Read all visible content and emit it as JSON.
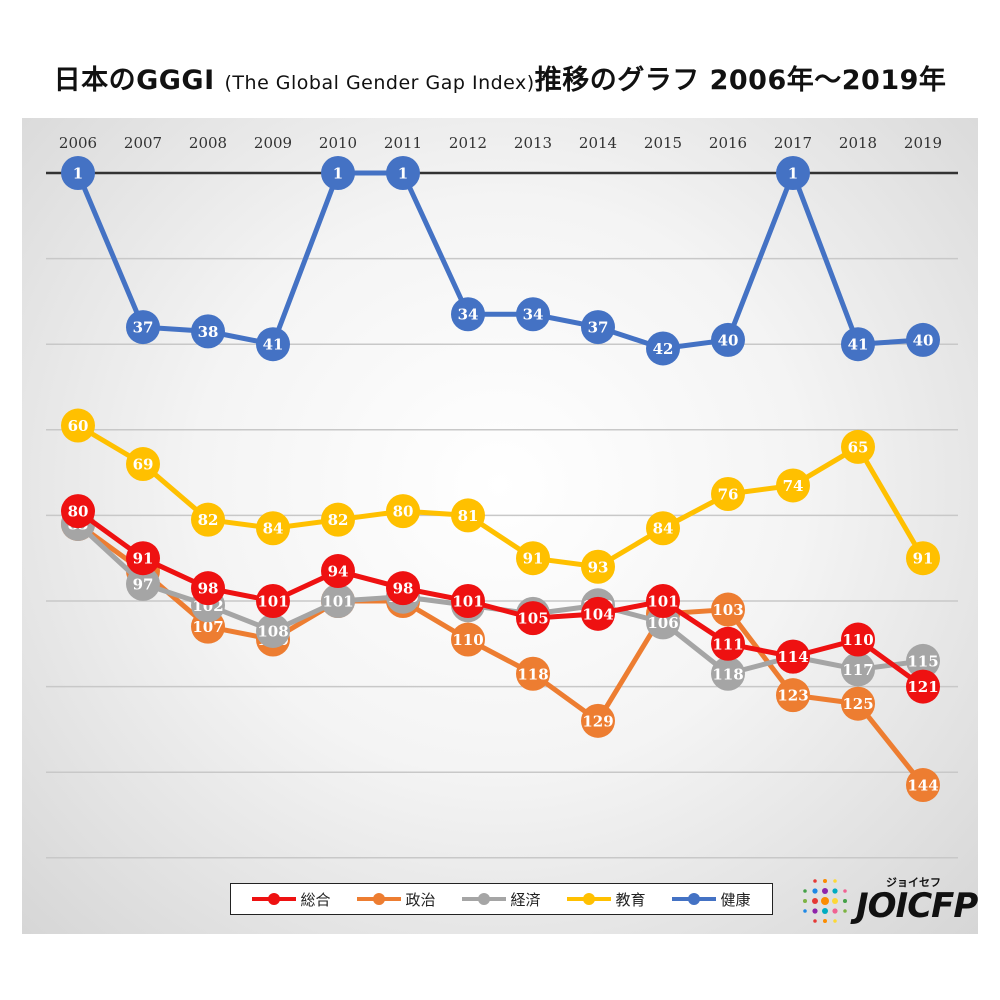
{
  "title": {
    "main_before": "日本のGGGI ",
    "sub": "(The Global Gender Gap Index)",
    "main_after": "推移のグラフ  2006年〜2019年"
  },
  "logo": {
    "kana": "ジョイセフ",
    "text": "JOICFP"
  },
  "chart_data": {
    "type": "line",
    "title": "日本のGGGI (The Global Gender Gap Index)推移のグラフ  2006年〜2019年",
    "xlabel": "",
    "ylabel": "",
    "y_axis_inverted": true,
    "x_axis_position": "top",
    "grid": true,
    "legend_position": "bottom",
    "categories": [
      "2006",
      "2007",
      "2008",
      "2009",
      "2010",
      "2011",
      "2012",
      "2013",
      "2014",
      "2015",
      "2016",
      "2017",
      "2018",
      "2019"
    ],
    "series": [
      {
        "name": "総合",
        "color": "#ee1111",
        "values": [
          80,
          91,
          98,
          101,
          94,
          98,
          101,
          105,
          104,
          101,
          111,
          114,
          110,
          121
        ]
      },
      {
        "name": "政治",
        "color": "#ed7d31",
        "values": [
          83,
          94,
          107,
          110,
          101,
          101,
          110,
          118,
          129,
          104,
          103,
          123,
          125,
          144
        ]
      },
      {
        "name": "経済",
        "color": "#a5a5a5",
        "values": [
          83,
          97,
          102,
          108,
          101,
          100,
          102,
          104,
          102,
          106,
          118,
          114,
          117,
          115
        ]
      },
      {
        "name": "教育",
        "color": "#ffc000",
        "values": [
          60,
          69,
          82,
          84,
          82,
          80,
          81,
          91,
          93,
          84,
          76,
          74,
          65,
          91
        ]
      },
      {
        "name": "健康",
        "color": "#4472c4",
        "values": [
          1,
          37,
          38,
          41,
          1,
          1,
          34,
          34,
          37,
          42,
          40,
          1,
          41,
          40
        ]
      }
    ]
  }
}
